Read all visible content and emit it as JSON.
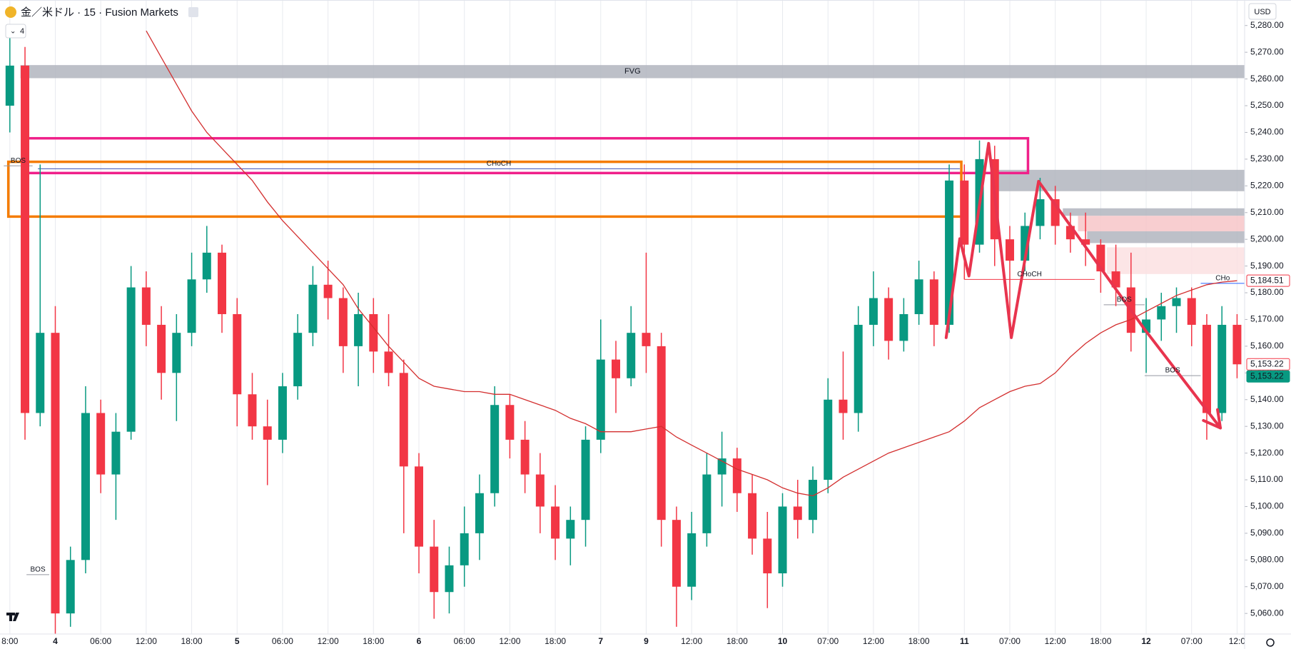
{
  "header": {
    "title": "金／米ドル · 15 · Fusion Markets",
    "indicators": 4,
    "currency": "USD"
  },
  "chart_data": {
    "type": "candlestick",
    "categories": [
      "8:00",
      null,
      null,
      "4",
      null,
      null,
      "06:00",
      null,
      null,
      "12:00",
      null,
      null,
      "18:00",
      null,
      null,
      "5",
      null,
      null,
      "06:00",
      null,
      null,
      "12:00",
      null,
      null,
      "18:00",
      null,
      null,
      "6",
      null,
      null,
      "06:00",
      null,
      null,
      "12:00",
      null,
      null,
      "18:00",
      null,
      null,
      "7",
      null,
      null,
      "9",
      null,
      null,
      "12:00",
      null,
      null,
      "18:00",
      null,
      null,
      "10",
      null,
      null,
      "07:00",
      null,
      null,
      "12:00",
      null,
      null,
      "18:00",
      null,
      null,
      "11",
      null,
      null,
      "07:00",
      null,
      null,
      "12:00",
      null,
      null,
      "18:00",
      null,
      null,
      "12",
      null,
      null,
      "07:00",
      null,
      null,
      "12:0"
    ],
    "open": [
      5250,
      5265,
      5135,
      5165,
      5060,
      5080,
      5135,
      5112,
      5128,
      5182,
      5168,
      5150,
      5165,
      5185,
      5195,
      5172,
      5142,
      5130,
      5125,
      5145,
      5165,
      5183,
      5178,
      5160,
      5172,
      5158,
      5150,
      5115,
      5085,
      5068,
      5078,
      5090,
      5105,
      5138,
      5125,
      5112,
      5100,
      5088,
      5095,
      5125,
      5155,
      5148,
      5165,
      5160,
      5095,
      5070,
      5090,
      5112,
      5118,
      5105,
      5088,
      5075,
      5100,
      5095,
      5110,
      5140,
      5135,
      5168,
      5178,
      5162,
      5172,
      5185,
      5168,
      5222,
      5198,
      5230,
      5200,
      5192,
      5205,
      5215,
      5205,
      5200,
      5198,
      5188,
      5182,
      5165,
      5170,
      5175,
      5178,
      5168,
      5135,
      5168
    ],
    "high": [
      5280,
      5272,
      5228,
      5175,
      5085,
      5145,
      5140,
      5135,
      5190,
      5188,
      5175,
      5172,
      5195,
      5205,
      5198,
      5178,
      5150,
      5140,
      5150,
      5172,
      5190,
      5192,
      5182,
      5180,
      5178,
      5172,
      5155,
      5120,
      5095,
      5085,
      5100,
      5112,
      5145,
      5142,
      5132,
      5120,
      5108,
      5100,
      5130,
      5170,
      5162,
      5175,
      5195,
      5165,
      5100,
      5098,
      5120,
      5128,
      5122,
      5112,
      5098,
      5105,
      5110,
      5115,
      5148,
      5158,
      5175,
      5188,
      5182,
      5178,
      5192,
      5188,
      5228,
      5228,
      5237,
      5235,
      5205,
      5210,
      5223,
      5220,
      5210,
      5210,
      5200,
      5198,
      5195,
      5178,
      5180,
      5182,
      5182,
      5172,
      5175,
      5172
    ],
    "low": [
      5240,
      5125,
      5130,
      5050,
      5055,
      5075,
      5105,
      5095,
      5125,
      5160,
      5140,
      5132,
      5160,
      5180,
      5165,
      5130,
      5125,
      5108,
      5120,
      5140,
      5160,
      5170,
      5150,
      5145,
      5150,
      5145,
      5090,
      5075,
      5058,
      5060,
      5070,
      5080,
      5100,
      5118,
      5105,
      5090,
      5080,
      5078,
      5085,
      5120,
      5135,
      5145,
      5150,
      5085,
      5055,
      5065,
      5085,
      5100,
      5098,
      5082,
      5062,
      5070,
      5088,
      5090,
      5105,
      5125,
      5128,
      5160,
      5155,
      5158,
      5168,
      5160,
      5165,
      5185,
      5195,
      5190,
      5165,
      5188,
      5200,
      5198,
      5195,
      5190,
      5180,
      5175,
      5158,
      5150,
      5162,
      5165,
      5160,
      5125,
      5132,
      5148
    ],
    "close": [
      5265,
      5135,
      5165,
      5060,
      5080,
      5135,
      5112,
      5128,
      5182,
      5168,
      5150,
      5165,
      5185,
      5195,
      5172,
      5142,
      5130,
      5125,
      5145,
      5165,
      5183,
      5178,
      5160,
      5172,
      5158,
      5150,
      5115,
      5085,
      5068,
      5078,
      5090,
      5105,
      5138,
      5125,
      5112,
      5100,
      5088,
      5095,
      5125,
      5155,
      5148,
      5165,
      5160,
      5095,
      5070,
      5090,
      5112,
      5118,
      5105,
      5088,
      5075,
      5100,
      5095,
      5110,
      5140,
      5135,
      5168,
      5178,
      5162,
      5172,
      5185,
      5168,
      5222,
      5198,
      5230,
      5200,
      5192,
      5205,
      5215,
      5205,
      5200,
      5198,
      5188,
      5182,
      5165,
      5170,
      5175,
      5178,
      5168,
      5135,
      5168,
      5153.22
    ],
    "up_color": "#089981",
    "down_color": "#f23645",
    "series": [
      {
        "color": "#d32f2f",
        "values": [
          null,
          null,
          null,
          null,
          null,
          null,
          null,
          null,
          null,
          5278,
          5268,
          5258,
          5248,
          5240,
          5234,
          5228,
          5222,
          5214,
          5207,
          5201,
          5195,
          5189,
          5183,
          5174,
          5167,
          5160,
          5154,
          5148,
          5145,
          5144,
          5143,
          5143,
          5142,
          5142,
          5140,
          5138,
          5136,
          5133,
          5131,
          5128,
          5128,
          5128,
          5129,
          5130,
          5126,
          5123,
          5120,
          5117,
          5114,
          5112,
          5110,
          5107,
          5105,
          5104,
          5107,
          5111,
          5114,
          5117,
          5120,
          5122,
          5124,
          5126,
          5128,
          5132,
          5137,
          5140,
          5143,
          5145,
          5146,
          5150,
          5156,
          5161,
          5165,
          5168,
          5170,
          5173,
          5176,
          5179,
          5181,
          5183,
          5184,
          5184.51
        ]
      }
    ],
    "ylim": [
      5052.3,
      5289.55
    ],
    "yticks": [
      {
        "value": 5060,
        "label": "5,060.00"
      },
      {
        "value": 5070,
        "label": "5,070.00"
      },
      {
        "value": 5080,
        "label": "5,080.00"
      },
      {
        "value": 5090,
        "label": "5,090.00"
      },
      {
        "value": 5100,
        "label": "5,100.00"
      },
      {
        "value": 5110,
        "label": "5,110.00"
      },
      {
        "value": 5120,
        "label": "5,120.00"
      },
      {
        "value": 5130,
        "label": "5,130.00"
      },
      {
        "value": 5140,
        "label": "5,140.00"
      },
      {
        "value": 5150,
        "label": "5,150.00"
      },
      {
        "value": 5160,
        "label": "5,160.00"
      },
      {
        "value": 5170,
        "label": "5,170.00"
      },
      {
        "value": 5180,
        "label": "5,180.00"
      },
      {
        "value": 5190,
        "label": "5,190.00"
      },
      {
        "value": 5200,
        "label": "5,200.00"
      },
      {
        "value": 5210,
        "label": "5,210.00"
      },
      {
        "value": 5220,
        "label": "5,220.00"
      },
      {
        "value": 5230,
        "label": "5,230.00"
      },
      {
        "value": 5240,
        "label": "5,240.00"
      },
      {
        "value": 5250,
        "label": "5,250.00"
      },
      {
        "value": 5260,
        "label": "5,260.00"
      },
      {
        "value": 5270,
        "label": "5,270.00"
      },
      {
        "value": 5280,
        "label": "5,280.00"
      }
    ],
    "grid": true,
    "zones": [
      {
        "top": 5265.2,
        "bottom": 5260.3,
        "x0": 0.7,
        "x1": 81.5,
        "fill": "#b2b5be",
        "label": "FVG"
      },
      {
        "top": 5226,
        "bottom": 5218,
        "x0": 64.8,
        "x1": 81.5,
        "fill": "#b2b5be"
      },
      {
        "top": 5211.6,
        "bottom": 5208.8,
        "x0": 69.5,
        "x1": 81.5,
        "fill": "#b2b5be"
      },
      {
        "top": 5208.8,
        "bottom": 5203,
        "x0": 70.5,
        "x1": 81.5,
        "fill": "#f7c5c8"
      },
      {
        "top": 5203,
        "bottom": 5198.6,
        "x0": 71.1,
        "x1": 81.5,
        "fill": "#b2b5be"
      },
      {
        "top": 5197,
        "bottom": 5187,
        "x0": 72.4,
        "x1": 81.5,
        "fill": "#fbe0e2"
      },
      {
        "top": 5237.8,
        "bottom": 5224.8,
        "x0": 1,
        "x1": 67.2,
        "stroke": "#f0208a"
      },
      {
        "top": 5229,
        "bottom": 5208.5,
        "x0": -0.1,
        "x1": 62.8,
        "stroke": "#f57c00"
      }
    ],
    "annotations": [
      {
        "text": "CHoCH",
        "price": 5226.4,
        "x0": 1.85,
        "x1": 62.7,
        "color": "#3f51b5"
      },
      {
        "text": "CHoCH",
        "price": 5185,
        "x0": 63,
        "x1": 71.6,
        "color": "#f23645"
      },
      {
        "text": "BOS",
        "price": 5227.5,
        "x0": -0.4,
        "x1": 1.5,
        "color": "#9598a1"
      },
      {
        "text": "BOS",
        "price": 5074.5,
        "x0": 1.1,
        "x1": 2.6,
        "color": "#9598a1"
      },
      {
        "text": "BOS",
        "price": 5175.5,
        "x0": 72.2,
        "x1": 74.9,
        "color": "#9598a1"
      },
      {
        "text": "BOS",
        "price": 5149,
        "x0": 74.9,
        "x1": 78.6,
        "color": "#9598a1"
      },
      {
        "text": "CHo",
        "price": 5183.5,
        "x0": 78.6,
        "x1": 81.5,
        "color": "#2962ff"
      }
    ],
    "arrow": {
      "color": "#e8344e",
      "points": [
        [
          61.8,
          5163.2
        ],
        [
          62.7,
          5200.2
        ],
        [
          63.3,
          5186.3
        ],
        [
          64.6,
          5235.9
        ],
        [
          66.1,
          5163.2
        ],
        [
          67.9,
          5221.7
        ],
        [
          74.9,
          5166.3
        ],
        [
          79.9,
          5129.4
        ]
      ]
    },
    "price_labels": [
      {
        "value": 5184.51,
        "label": "5,184.51",
        "color": "#f23645",
        "filled": false
      },
      {
        "value": 5153.22,
        "label": "5,153.22",
        "color": "#f23645",
        "filled": false
      },
      {
        "value": 5153.22,
        "label": "5,153.22",
        "color": "#089981",
        "filled": true
      }
    ]
  }
}
